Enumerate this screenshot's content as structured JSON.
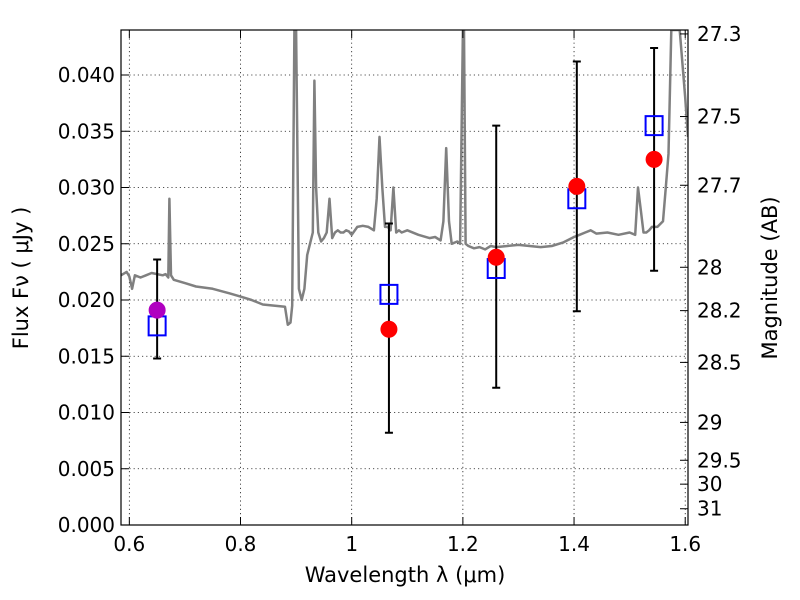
{
  "chart_data": {
    "type": "scatter",
    "xlabel": "Wavelength  λ (μm)",
    "ylabel_left": "Flux  Fν  ( μJy )",
    "ylabel_right": "Magnitude (AB)",
    "xlim": [
      0.585,
      1.605
    ],
    "ylim": [
      0.0,
      0.044
    ],
    "grid": true,
    "x_ticks": [
      0.6,
      0.8,
      1.0,
      1.2,
      1.4,
      1.6
    ],
    "x_tick_labels": [
      "0.6",
      "0.8",
      "1",
      "1.2",
      "1.4",
      "1.6"
    ],
    "y_ticks": [
      0.0,
      0.005,
      0.01,
      0.015,
      0.02,
      0.025,
      0.03,
      0.035,
      0.04
    ],
    "y_tick_labels": [
      "0.000",
      "0.005",
      "0.010",
      "0.015",
      "0.020",
      "0.025",
      "0.030",
      "0.035",
      "0.040"
    ],
    "mag_ticks": [
      27.3,
      27.5,
      27.7,
      28,
      28.2,
      28.5,
      29,
      29.5,
      30,
      31
    ],
    "mag_tick_labels": [
      "27.3",
      "27.5",
      "27.7",
      "28",
      "28.2",
      "28.5",
      "29",
      "29.5",
      "30",
      "31"
    ],
    "series": [
      {
        "kind": "line",
        "color": "#808080",
        "x": [
          0.585,
          0.595,
          0.6,
          0.605,
          0.61,
          0.62,
          0.63,
          0.64,
          0.65,
          0.66,
          0.665,
          0.67,
          0.672,
          0.675,
          0.68,
          0.7,
          0.72,
          0.75,
          0.78,
          0.8,
          0.82,
          0.84,
          0.86,
          0.88,
          0.885,
          0.89,
          0.893,
          0.897,
          0.9,
          0.905,
          0.91,
          0.915,
          0.92,
          0.925,
          0.93,
          0.933,
          0.936,
          0.94,
          0.945,
          0.95,
          0.955,
          0.96,
          0.965,
          0.97,
          0.975,
          0.98,
          0.985,
          0.99,
          0.995,
          1.0,
          1.01,
          1.02,
          1.03,
          1.04,
          1.045,
          1.05,
          1.055,
          1.06,
          1.065,
          1.07,
          1.075,
          1.08,
          1.085,
          1.09,
          1.1,
          1.12,
          1.14,
          1.15,
          1.16,
          1.165,
          1.17,
          1.175,
          1.18,
          1.19,
          1.195,
          1.2,
          1.202,
          1.205,
          1.21,
          1.22,
          1.23,
          1.24,
          1.25,
          1.26,
          1.28,
          1.3,
          1.32,
          1.34,
          1.36,
          1.38,
          1.4,
          1.41,
          1.42,
          1.43,
          1.44,
          1.46,
          1.48,
          1.5,
          1.51,
          1.515,
          1.52,
          1.525,
          1.53,
          1.535,
          1.54,
          1.55,
          1.56,
          1.565,
          1.57,
          1.575,
          1.58,
          1.59,
          1.6,
          1.605
        ],
        "y": [
          0.0222,
          0.0225,
          0.0221,
          0.021,
          0.0222,
          0.022,
          0.0222,
          0.0224,
          0.0223,
          0.0222,
          0.0223,
          0.022,
          0.029,
          0.0222,
          0.0218,
          0.0215,
          0.0212,
          0.021,
          0.0206,
          0.0203,
          0.02,
          0.0196,
          0.0195,
          0.0194,
          0.0178,
          0.018,
          0.0195,
          0.044,
          0.044,
          0.021,
          0.02,
          0.021,
          0.024,
          0.025,
          0.026,
          0.0395,
          0.03,
          0.026,
          0.0252,
          0.0255,
          0.026,
          0.029,
          0.0255,
          0.026,
          0.0262,
          0.026,
          0.026,
          0.0262,
          0.0261,
          0.0258,
          0.0265,
          0.0266,
          0.0265,
          0.0262,
          0.029,
          0.0345,
          0.03,
          0.0265,
          0.0265,
          0.0262,
          0.03,
          0.026,
          0.0262,
          0.026,
          0.0262,
          0.0258,
          0.0255,
          0.0256,
          0.0253,
          0.027,
          0.0335,
          0.027,
          0.025,
          0.0252,
          0.025,
          0.044,
          0.044,
          0.025,
          0.0248,
          0.0246,
          0.0247,
          0.0245,
          0.0248,
          0.0247,
          0.0248,
          0.0249,
          0.0248,
          0.0247,
          0.0248,
          0.0251,
          0.0256,
          0.0258,
          0.026,
          0.0262,
          0.0259,
          0.026,
          0.0258,
          0.026,
          0.0258,
          0.03,
          0.028,
          0.026,
          0.026,
          0.0262,
          0.0265,
          0.0265,
          0.027,
          0.03,
          0.033,
          0.044,
          0.044,
          0.044,
          0.038,
          0.0345
        ]
      },
      {
        "kind": "errorbar",
        "color": "#000000",
        "points": [
          {
            "x": 0.65,
            "low": 0.0148,
            "high": 0.0236
          },
          {
            "x": 1.067,
            "low": 0.0082,
            "high": 0.0268
          },
          {
            "x": 1.26,
            "low": 0.0122,
            "high": 0.0355
          },
          {
            "x": 1.405,
            "low": 0.019,
            "high": 0.0412
          },
          {
            "x": 1.544,
            "low": 0.0226,
            "high": 0.0424
          }
        ]
      },
      {
        "kind": "open-square",
        "color": "#0000ff",
        "x": [
          0.65,
          1.067,
          1.26,
          1.405,
          1.544
        ],
        "y": [
          0.0177,
          0.0205,
          0.0228,
          0.029,
          0.0355
        ]
      },
      {
        "kind": "filled-circle",
        "color": "#ff0000",
        "x": [
          1.067,
          1.26,
          1.405,
          1.544
        ],
        "y": [
          0.0174,
          0.0238,
          0.0301,
          0.0325
        ]
      },
      {
        "kind": "filled-circle",
        "color": "#b000c0",
        "x": [
          0.65
        ],
        "y": [
          0.0191
        ]
      }
    ]
  }
}
